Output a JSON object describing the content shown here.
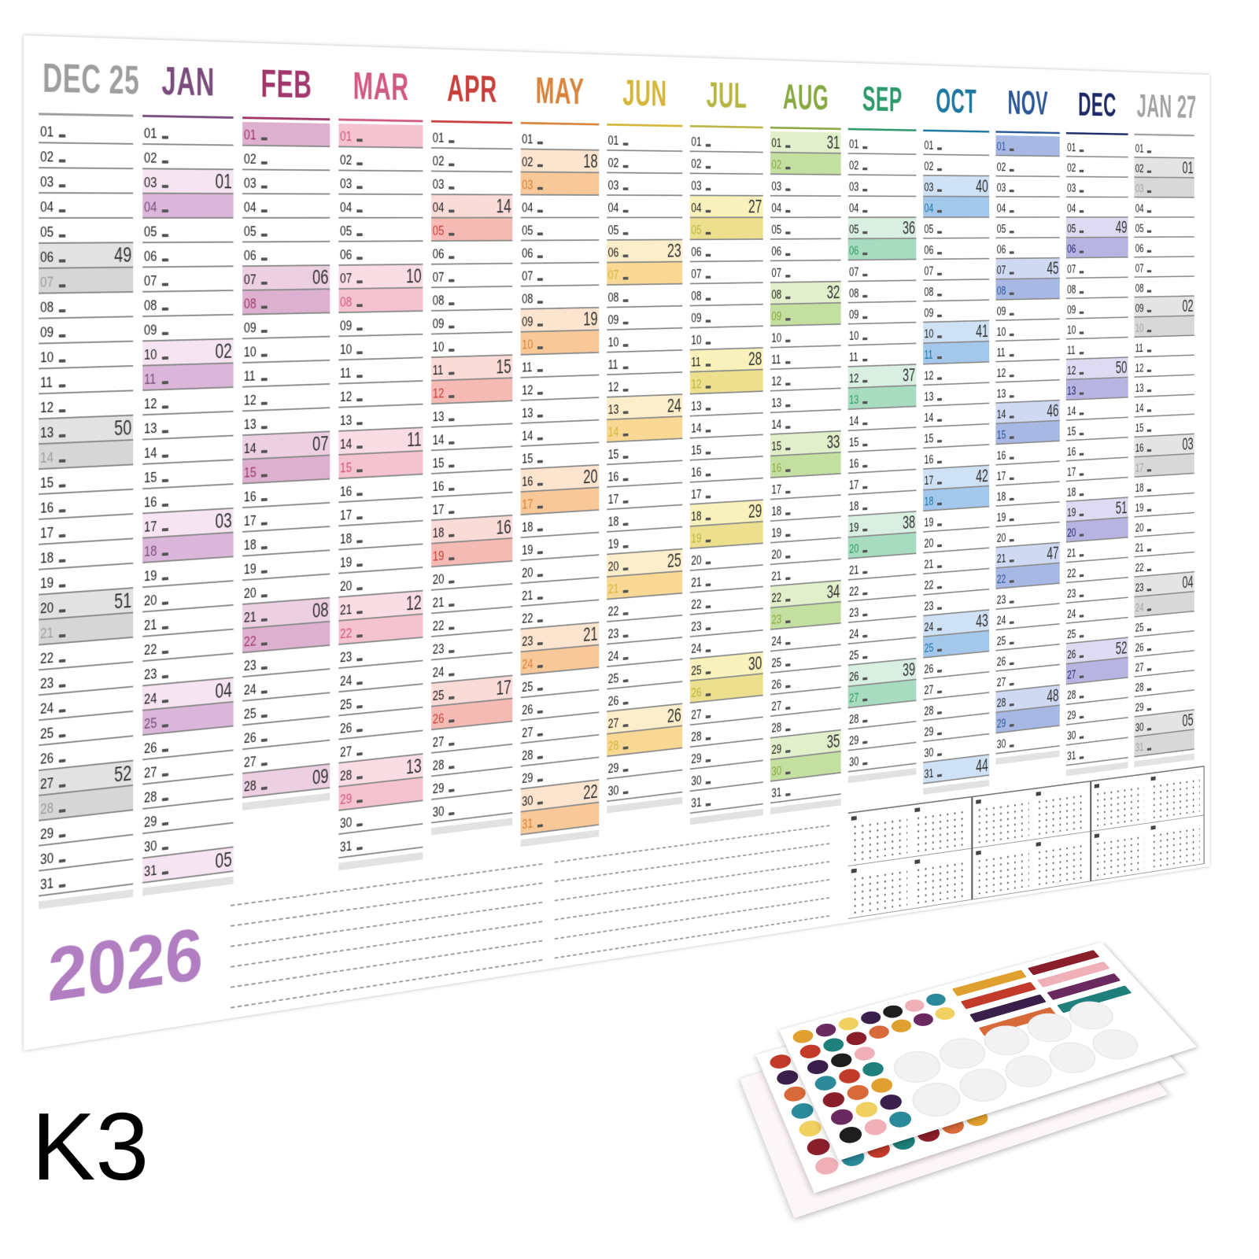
{
  "poster": {
    "year_label": "2026",
    "day_labels": [
      "01",
      "02",
      "03",
      "04",
      "05",
      "06",
      "07",
      "08",
      "09",
      "10",
      "11",
      "12",
      "13",
      "14",
      "15",
      "16",
      "17",
      "18",
      "19",
      "20",
      "21",
      "22",
      "23",
      "24",
      "25",
      "26",
      "27",
      "28",
      "29",
      "30",
      "31"
    ],
    "months": [
      {
        "label": "DEC 25",
        "color": "#9e9e9e",
        "sat": "#e2e2e2",
        "sun": "#d6d6d6",
        "days": 31,
        "first_weekday": 0,
        "weeks": {
          "6": "49",
          "13": "50",
          "20": "51",
          "27": "52"
        }
      },
      {
        "label": "JAN",
        "color": "#7a4d7c",
        "sat": "#f6e4f2",
        "sun": "#dcb6da",
        "days": 31,
        "first_weekday": 3,
        "weeks": {
          "3": "01",
          "10": "02",
          "17": "03",
          "24": "04",
          "31": "05"
        }
      },
      {
        "label": "FEB",
        "color": "#a2376c",
        "sat": "#ecd0e2",
        "sun": "#dcb0ce",
        "days": 28,
        "first_weekday": 6,
        "weeks": {
          "7": "06",
          "14": "07",
          "21": "08",
          "28": "09"
        }
      },
      {
        "label": "MAR",
        "color": "#d05a82",
        "sat": "#fadce4",
        "sun": "#f5c2cf",
        "days": 31,
        "first_weekday": 6,
        "weeks": {
          "7": "10",
          "14": "11",
          "21": "12",
          "28": "13"
        }
      },
      {
        "label": "APR",
        "color": "#c8403c",
        "sat": "#fbdbd8",
        "sun": "#f5bab3",
        "days": 30,
        "first_weekday": 2,
        "weeks": {
          "4": "14",
          "11": "15",
          "18": "16",
          "25": "17"
        }
      },
      {
        "label": "MAY",
        "color": "#d8843c",
        "sat": "#fde4cf",
        "sun": "#f8c898",
        "days": 31,
        "first_weekday": 4,
        "weeks": {
          "2": "18",
          "9": "19",
          "16": "20",
          "23": "21",
          "30": "22"
        }
      },
      {
        "label": "JUN",
        "color": "#d4b63a",
        "sat": "#fdeecb",
        "sun": "#f8d892",
        "days": 30,
        "first_weekday": 0,
        "weeks": {
          "6": "23",
          "13": "24",
          "20": "25",
          "27": "26"
        }
      },
      {
        "label": "JUL",
        "color": "#b8b642",
        "sat": "#f8f1bc",
        "sun": "#ece08e",
        "days": 31,
        "first_weekday": 2,
        "weeks": {
          "4": "27",
          "11": "28",
          "18": "29",
          "25": "30"
        }
      },
      {
        "label": "AUG",
        "color": "#88a842",
        "sat": "#e2efcb",
        "sun": "#c4e0a0",
        "days": 31,
        "first_weekday": 5,
        "weeks": {
          "1": "31",
          "8": "32",
          "15": "33",
          "22": "34",
          "29": "35"
        }
      },
      {
        "label": "SEP",
        "color": "#2e9a6c",
        "sat": "#d9efe2",
        "sun": "#a8dcc0",
        "days": 30,
        "first_weekday": 1,
        "weeks": {
          "5": "36",
          "12": "37",
          "19": "38",
          "26": "39"
        }
      },
      {
        "label": "OCT",
        "color": "#1e78a0",
        "sat": "#cfe2f5",
        "sun": "#a4c8ec",
        "days": 31,
        "first_weekday": 3,
        "weeks": {
          "3": "40",
          "10": "41",
          "17": "42",
          "24": "43",
          "31": "44"
        }
      },
      {
        "label": "NOV",
        "color": "#2a5896",
        "sat": "#cfdaf2",
        "sun": "#a8b8e4",
        "days": 30,
        "first_weekday": 6,
        "weeks": {
          "7": "45",
          "14": "46",
          "21": "47",
          "28": "48"
        }
      },
      {
        "label": "DEC",
        "color": "#1e2a68",
        "sat": "#dedaf2",
        "sun": "#b8b4e2",
        "days": 31,
        "first_weekday": 1,
        "weeks": {
          "5": "49",
          "12": "50",
          "19": "51",
          "26": "52"
        }
      },
      {
        "label": "JAN 27",
        "color": "#a4a4a4",
        "sat": "#e4e4e4",
        "sun": "#d8d8d8",
        "days": 31,
        "first_weekday": 4,
        "weeks": {
          "2": "01",
          "9": "02",
          "16": "03",
          "23": "04",
          "30": "05"
        }
      }
    ]
  },
  "product_label": "K3",
  "sticker_colors": [
    "#3a1f4a",
    "#c23a2a",
    "#e0a030",
    "#1e1e1e",
    "#1f7f7a",
    "#6a2a60",
    "#f0b0b8",
    "#8a1e2a",
    "#f0d060",
    "#2a8a9a",
    "#d86a3a"
  ]
}
